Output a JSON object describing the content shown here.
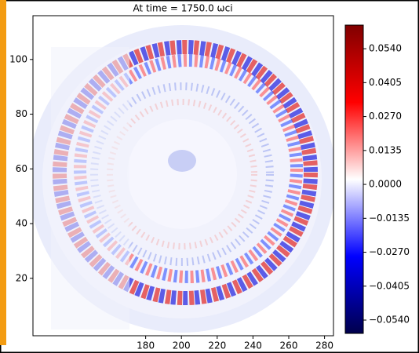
{
  "chart_data": {
    "type": "heatmap",
    "title": "At time = 1750.0 ωci",
    "xlim": [
      117,
      285
    ],
    "xticks": [
      180,
      200,
      220,
      240,
      260,
      280
    ],
    "ylim": [
      -1,
      116
    ],
    "yticks": [
      20,
      40,
      60,
      80,
      100
    ],
    "clim": [
      -0.0593,
      0.0634
    ],
    "cticks": [
      {
        "value": -0.054,
        "label": "−0.0540"
      },
      {
        "value": -0.0405,
        "label": "−0.0405"
      },
      {
        "value": -0.027,
        "label": "−0.0270"
      },
      {
        "value": -0.0135,
        "label": "−0.0135"
      },
      {
        "value": 0,
        "label": "0.0000"
      },
      {
        "value": 0.0135,
        "label": "0.0135"
      },
      {
        "value": 0.027,
        "label": "0.0270"
      },
      {
        "value": 0.0405,
        "label": "0.0405"
      },
      {
        "value": 0.054,
        "label": "0.0540"
      }
    ],
    "colormap": "seismic"
  }
}
